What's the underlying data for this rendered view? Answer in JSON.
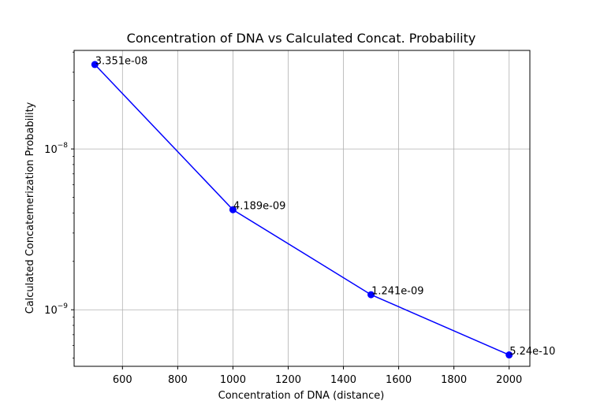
{
  "chart_data": {
    "type": "line",
    "title": "Concentration of DNA vs Calculated Concat. Probability",
    "xlabel": "Concentration of DNA (distance)",
    "ylabel": "Calculated Concatemerization Probability",
    "x": [
      500,
      1000,
      1500,
      2000
    ],
    "series": [
      {
        "values": [
          3.351e-08,
          4.189e-09,
          1.241e-09,
          5.24e-10
        ],
        "color": "#0000ff",
        "marker": "circle"
      }
    ],
    "data_labels": [
      "3.351e-08",
      "4.189e-09",
      "1.241e-09",
      "5.24e-10"
    ],
    "xlim": [
      425,
      2075
    ],
    "ylim": [
      4.45e-10,
      4.1e-08
    ],
    "yscale": "log",
    "x_ticks": [
      600,
      800,
      1000,
      1200,
      1400,
      1600,
      1800,
      2000
    ],
    "y_ticks": [
      {
        "value": 1e-09,
        "base": "10",
        "exponent": "−9"
      },
      {
        "value": 1e-08,
        "base": "10",
        "exponent": "−8"
      }
    ],
    "grid": true
  }
}
